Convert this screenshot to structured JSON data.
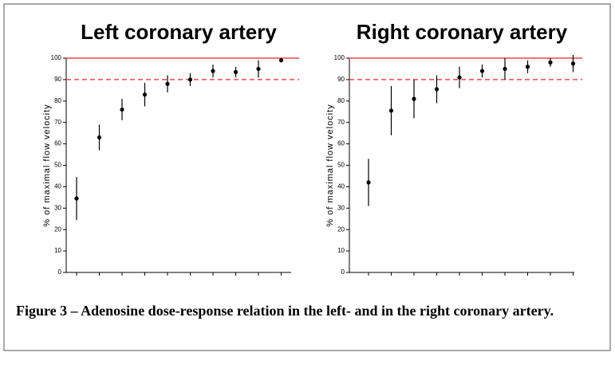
{
  "chart_data": [
    {
      "type": "scatter",
      "title": "Left coronary artery",
      "y_label": "% of maximal flow velocity",
      "categories": [
        null,
        null,
        null,
        null,
        null,
        null,
        null,
        null,
        null,
        null
      ],
      "values": [
        34.5,
        63,
        76,
        83,
        88,
        90,
        94,
        93.5,
        95,
        99
      ],
      "errors": [
        10,
        6,
        5,
        5.5,
        4,
        3,
        3,
        2.5,
        4,
        1
      ],
      "color": "#000000",
      "ylim": [
        0,
        100
      ],
      "yticks": [
        0,
        10,
        20,
        30,
        40,
        50,
        60,
        70,
        80,
        90,
        100
      ],
      "reference_lines": [
        {
          "value": 100,
          "style": "solid",
          "color": "#e8474c"
        },
        {
          "value": 90,
          "style": "dashed",
          "color": "#e8474c"
        }
      ]
    },
    {
      "type": "scatter",
      "title": "Right coronary artery",
      "y_label": "% of maximal flow velocity",
      "categories": [
        null,
        null,
        null,
        null,
        null,
        null,
        null,
        null,
        null,
        null
      ],
      "values": [
        42,
        75.5,
        81,
        85.5,
        91,
        94,
        95,
        96,
        98,
        97.5
      ],
      "errors": [
        11,
        11.5,
        9,
        6.5,
        5,
        3,
        5,
        3,
        2,
        4
      ],
      "color": "#000000",
      "ylim": [
        0,
        100
      ],
      "yticks": [
        0,
        10,
        20,
        30,
        40,
        50,
        60,
        70,
        80,
        90,
        100
      ],
      "reference_lines": [
        {
          "value": 100,
          "style": "solid",
          "color": "#e8474c"
        },
        {
          "value": 90,
          "style": "dashed",
          "color": "#e8474c"
        }
      ]
    }
  ],
  "caption": "Figure 3 – Adenosine dose-response relation in the left- and in the right coronary artery."
}
